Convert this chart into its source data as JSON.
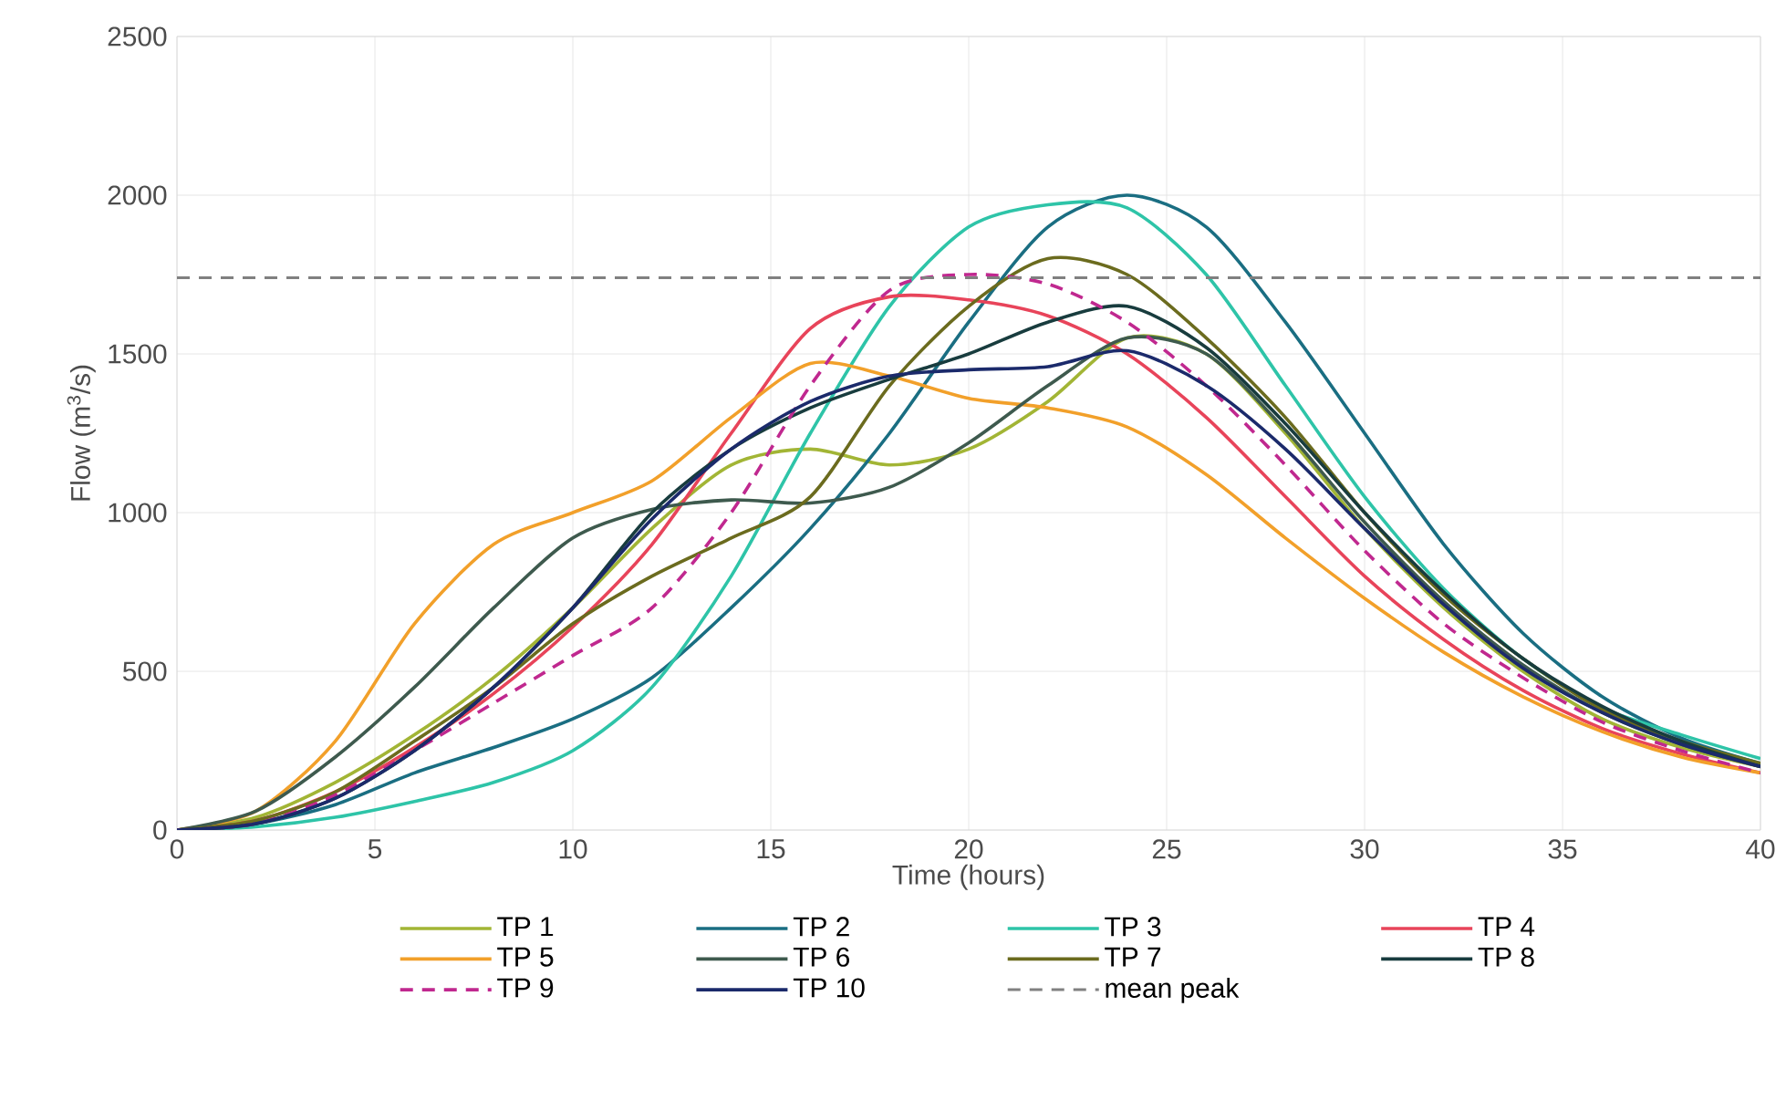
{
  "chart_data": {
    "type": "line",
    "xlabel": "Time (hours)",
    "ylabel": "Flow (m$^{3}$/s)",
    "x": [
      0,
      2,
      4,
      6,
      8,
      10,
      12,
      14,
      16,
      18,
      20,
      22,
      24,
      26,
      28,
      30,
      32,
      34,
      36,
      38,
      40
    ],
    "series": [
      {
        "name": "TP 1",
        "color": "#a2b535",
        "values": [
          0,
          40,
          150,
          300,
          480,
          700,
          950,
          1150,
          1200,
          1150,
          1200,
          1350,
          1550,
          1500,
          1250,
          950,
          700,
          500,
          350,
          260,
          200
        ]
      },
      {
        "name": "TP 2",
        "color": "#1a6e82",
        "values": [
          0,
          20,
          80,
          180,
          260,
          350,
          480,
          700,
          950,
          1250,
          1600,
          1900,
          2000,
          1900,
          1600,
          1250,
          900,
          620,
          420,
          290,
          210
        ]
      },
      {
        "name": "TP 3",
        "color": "#2ec4a8",
        "values": [
          0,
          10,
          40,
          90,
          150,
          250,
          450,
          800,
          1250,
          1650,
          1900,
          1970,
          1960,
          1750,
          1400,
          1050,
          760,
          540,
          385,
          300,
          225
        ]
      },
      {
        "name": "TP 4",
        "color": "#e8445a",
        "values": [
          0,
          30,
          120,
          260,
          430,
          640,
          900,
          1250,
          1580,
          1680,
          1670,
          1620,
          1500,
          1300,
          1050,
          800,
          600,
          440,
          320,
          240,
          180
        ]
      },
      {
        "name": "TP 5",
        "color": "#f2a02a",
        "values": [
          0,
          60,
          280,
          650,
          900,
          1000,
          1100,
          1300,
          1470,
          1430,
          1360,
          1330,
          1270,
          1120,
          920,
          730,
          560,
          420,
          310,
          230,
          180
        ]
      },
      {
        "name": "TP 6",
        "color": "#3e5a4e",
        "values": [
          0,
          60,
          230,
          450,
          700,
          920,
          1010,
          1040,
          1030,
          1080,
          1220,
          1400,
          1550,
          1500,
          1260,
          970,
          720,
          520,
          370,
          270,
          200
        ]
      },
      {
        "name": "TP 7",
        "color": "#6b6b1e",
        "values": [
          0,
          30,
          120,
          280,
          450,
          650,
          800,
          920,
          1050,
          1400,
          1650,
          1800,
          1750,
          1550,
          1300,
          1000,
          740,
          540,
          380,
          280,
          210
        ]
      },
      {
        "name": "TP 8",
        "color": "#183c3e",
        "values": [
          0,
          20,
          100,
          250,
          450,
          700,
          1000,
          1200,
          1330,
          1420,
          1500,
          1600,
          1650,
          1520,
          1280,
          1000,
          750,
          540,
          390,
          280,
          200
        ]
      },
      {
        "name": "TP 9",
        "color": "#c0288f",
        "line_style": "dashed",
        "values": [
          0,
          20,
          110,
          250,
          400,
          550,
          700,
          1000,
          1400,
          1700,
          1750,
          1720,
          1600,
          1400,
          1150,
          880,
          650,
          480,
          340,
          250,
          180
        ]
      },
      {
        "name": "TP 10",
        "color": "#1b2a6b",
        "values": [
          0,
          20,
          100,
          250,
          450,
          700,
          980,
          1200,
          1350,
          1430,
          1450,
          1460,
          1510,
          1400,
          1200,
          950,
          710,
          510,
          370,
          270,
          200
        ]
      }
    ],
    "ref_lines": [
      {
        "axis": "y",
        "value": 1740,
        "label": "mean peak",
        "color": "#808080",
        "line_style": "dashed"
      }
    ],
    "xlim": [
      0,
      40
    ],
    "ylim": [
      0,
      2500
    ],
    "xticks": [
      0,
      5,
      10,
      15,
      20,
      25,
      30,
      35,
      40
    ],
    "yticks": [
      0,
      500,
      1000,
      1500,
      2000,
      2500
    ],
    "grid": true,
    "legend": "bottom",
    "marker": "none",
    "line_style": "solid"
  }
}
